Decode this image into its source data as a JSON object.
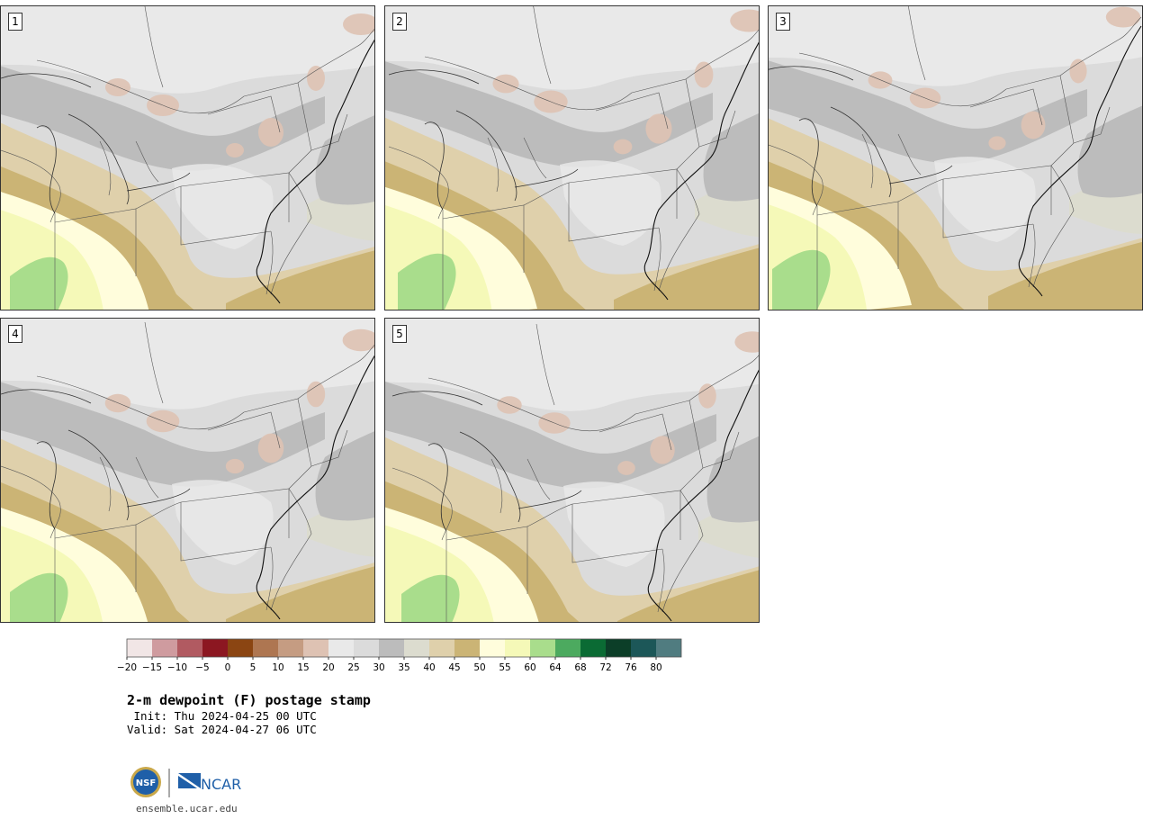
{
  "panels": [
    {
      "label": "1"
    },
    {
      "label": "2"
    },
    {
      "label": "3"
    },
    {
      "label": "4"
    },
    {
      "label": "5"
    }
  ],
  "colorbar": {
    "colors": [
      "#f1e6e6",
      "#cf9b9f",
      "#b15a61",
      "#8c1721",
      "#8b4512",
      "#ae7651",
      "#c59c82",
      "#dec2b3",
      "#e9e9e9",
      "#dbdbdb",
      "#bcbcbc",
      "#dcdccf",
      "#dfd0ab",
      "#cbb475",
      "#fffddc",
      "#f5f9b8",
      "#a9dd8c",
      "#4caa5f",
      "#0b6b34",
      "#0c3e28",
      "#1c5758",
      "#507c80"
    ],
    "tick_labels": [
      "−20",
      "−15",
      "−10",
      "−5",
      "0",
      "5",
      "10",
      "15",
      "20",
      "25",
      "30",
      "35",
      "40",
      "45",
      "50",
      "55",
      "60",
      "64",
      "68",
      "72",
      "76",
      "80"
    ]
  },
  "title": "2-m dewpoint (F) postage stamp",
  "init_line": " Init: Thu 2024-04-25 00 UTC",
  "valid_line": "Valid: Sat 2024-04-27 06 UTC",
  "logo": {
    "nsf_text": "NSF",
    "ncar_text": "NCAR"
  },
  "url": "ensemble.ucar.edu"
}
